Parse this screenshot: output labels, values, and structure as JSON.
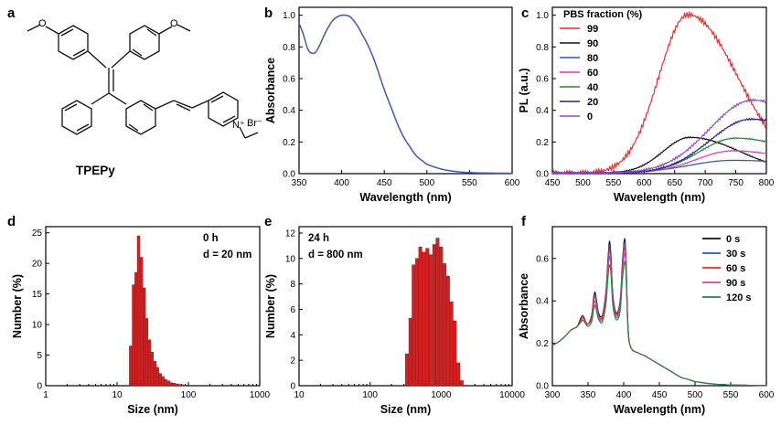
{
  "colors": {
    "b_line": "#3b59b5",
    "bars": "#d42020",
    "s99": "#ee2b2b",
    "s90": "#111111",
    "s80": "#2f55c9",
    "s60": "#d63fb0",
    "s40": "#1e8a3a",
    "s20": "#2a1f8f",
    "s0": "#8a4dd6"
  },
  "panel_a": {
    "letter": "a",
    "compound_name": "TPEPy",
    "labels": {
      "bromide": "Br⁻",
      "nitrogen": "N⁺"
    }
  },
  "chart_data": [
    {
      "panel": "b",
      "type": "line",
      "xlabel": "Wavelength (nm)",
      "ylabel": "Absorbance",
      "xlim": [
        350,
        600
      ],
      "ylim": [
        0,
        1.05
      ],
      "xticks": [
        350,
        400,
        450,
        500,
        550,
        600
      ],
      "yticks": [
        0.0,
        0.2,
        0.4,
        0.6,
        0.8,
        1.0
      ],
      "series": [
        {
          "x": [
            350,
            355,
            360,
            365,
            370,
            375,
            380,
            385,
            390,
            395,
            400,
            405,
            410,
            415,
            420,
            425,
            430,
            435,
            440,
            445,
            450,
            455,
            460,
            465,
            470,
            475,
            480,
            485,
            490,
            495,
            500,
            510,
            520,
            530,
            540,
            550,
            560,
            570,
            580,
            590,
            600
          ],
          "values": [
            0.95,
            0.88,
            0.79,
            0.76,
            0.77,
            0.82,
            0.88,
            0.93,
            0.97,
            0.99,
            1.0,
            1.0,
            0.99,
            0.96,
            0.92,
            0.87,
            0.82,
            0.76,
            0.69,
            0.61,
            0.53,
            0.46,
            0.39,
            0.32,
            0.26,
            0.21,
            0.17,
            0.13,
            0.1,
            0.08,
            0.06,
            0.04,
            0.025,
            0.016,
            0.01,
            0.007,
            0.005,
            0.004,
            0.003,
            0.003,
            0.002
          ]
        }
      ]
    },
    {
      "panel": "c",
      "type": "line",
      "xlabel": "Wavelength (nm)",
      "ylabel": "PL (a.u.)",
      "xlim": [
        450,
        800
      ],
      "ylim": [
        0,
        1.05
      ],
      "xticks": [
        450,
        500,
        550,
        600,
        650,
        700,
        750,
        800
      ],
      "yticks": [
        0.0,
        0.2,
        0.4,
        0.6,
        0.8,
        1.0
      ],
      "legend_title": "PBS fraction (%)",
      "legend_placement": "top-left",
      "series": [
        {
          "name": "99",
          "peak": 672,
          "amp": 1.0,
          "wl": 68,
          "wr": 115
        },
        {
          "name": "90",
          "peak": 675,
          "amp": 0.225,
          "wl": 62,
          "wr": 115
        },
        {
          "name": "80",
          "peak": 745,
          "amp": 0.08,
          "wl": 100,
          "wr": 200
        },
        {
          "name": "60",
          "peak": 745,
          "amp": 0.14,
          "wl": 85,
          "wr": 150
        },
        {
          "name": "40",
          "peak": 750,
          "amp": 0.22,
          "wl": 85,
          "wr": 150
        },
        {
          "name": "20",
          "peak": 775,
          "amp": 0.34,
          "wl": 95,
          "wr": 150
        },
        {
          "name": "0",
          "peak": 778,
          "amp": 0.46,
          "wl": 100,
          "wr": 150
        }
      ]
    },
    {
      "panel": "d",
      "type": "bar",
      "xlabel": "Size (nm)",
      "ylabel": "Number (%)",
      "xscale": "log",
      "xlim": [
        1,
        1000
      ],
      "ylim": [
        0,
        26
      ],
      "xticks": [
        1,
        10,
        100,
        1000
      ],
      "yticks": [
        0,
        5,
        10,
        15,
        20,
        25
      ],
      "annotations": [
        "0 h",
        "d = 20 nm"
      ],
      "bins": [
        15.5,
        17,
        18.5,
        20,
        22,
        24,
        26,
        28.5,
        31,
        34,
        37,
        40.5,
        44,
        48,
        53,
        58,
        63,
        69,
        75,
        82,
        90
      ],
      "values": [
        6.5,
        16.5,
        18.5,
        24.5,
        21,
        16,
        11,
        7.5,
        5.5,
        4,
        3,
        2,
        1.5,
        1,
        0.8,
        0.5,
        0.4,
        0.3,
        0.2,
        0.15,
        0.1
      ]
    },
    {
      "panel": "e",
      "type": "bar",
      "xlabel": "Size (nm)",
      "ylabel": "Number (%)",
      "xscale": "log",
      "xlim": [
        10,
        10000
      ],
      "ylim": [
        0,
        12.5
      ],
      "xticks": [
        10,
        100,
        1000,
        10000
      ],
      "yticks": [
        0,
        2,
        4,
        6,
        8,
        10,
        12
      ],
      "annotations": [
        "24 h",
        "d = 800 nm"
      ],
      "bins": [
        330,
        370,
        410,
        460,
        510,
        570,
        640,
        710,
        800,
        890,
        1000,
        1120,
        1250,
        1400,
        1560,
        1750,
        1950
      ],
      "values": [
        2.5,
        5.3,
        9.5,
        10.0,
        10.9,
        10.5,
        10.8,
        10.3,
        11.1,
        11.6,
        10.9,
        9.6,
        8.6,
        6.6,
        5.1,
        1.8,
        0.4
      ]
    },
    {
      "panel": "f",
      "type": "line",
      "xlabel": "Wavelength (nm)",
      "ylabel": "Absorbance",
      "xlim": [
        300,
        600
      ],
      "ylim": [
        0,
        0.75
      ],
      "xticks": [
        300,
        350,
        400,
        450,
        500,
        550,
        600
      ],
      "yticks": [
        0.0,
        0.2,
        0.4,
        0.6
      ],
      "legend_placement": "top-right",
      "x": [
        300,
        310,
        320,
        325,
        330,
        335,
        340,
        343,
        347,
        350,
        355,
        358,
        360,
        362,
        365,
        370,
        375,
        378,
        380,
        382,
        385,
        390,
        395,
        398,
        401,
        403,
        406,
        410,
        420,
        430,
        440,
        450,
        460,
        470,
        480,
        490,
        500,
        520,
        540,
        560,
        580,
        600
      ],
      "series": [
        {
          "name": "0 s",
          "values": [
            0.19,
            0.21,
            0.24,
            0.26,
            0.27,
            0.28,
            0.32,
            0.33,
            0.3,
            0.29,
            0.33,
            0.42,
            0.44,
            0.4,
            0.34,
            0.33,
            0.44,
            0.6,
            0.68,
            0.62,
            0.42,
            0.34,
            0.4,
            0.57,
            0.69,
            0.62,
            0.28,
            0.18,
            0.155,
            0.14,
            0.12,
            0.1,
            0.08,
            0.06,
            0.04,
            0.03,
            0.02,
            0.01,
            0.005,
            0.003,
            0.002,
            0.001
          ]
        },
        {
          "name": "30 s",
          "values": [
            0.19,
            0.21,
            0.24,
            0.26,
            0.27,
            0.28,
            0.31,
            0.32,
            0.3,
            0.29,
            0.32,
            0.41,
            0.43,
            0.39,
            0.33,
            0.32,
            0.43,
            0.59,
            0.66,
            0.6,
            0.41,
            0.33,
            0.39,
            0.56,
            0.675,
            0.61,
            0.28,
            0.18,
            0.155,
            0.14,
            0.12,
            0.1,
            0.08,
            0.06,
            0.04,
            0.03,
            0.02,
            0.01,
            0.005,
            0.003,
            0.002,
            0.001
          ]
        },
        {
          "name": "60 s",
          "values": [
            0.19,
            0.21,
            0.24,
            0.26,
            0.27,
            0.28,
            0.31,
            0.32,
            0.3,
            0.29,
            0.32,
            0.4,
            0.42,
            0.38,
            0.33,
            0.32,
            0.42,
            0.57,
            0.64,
            0.58,
            0.4,
            0.33,
            0.38,
            0.54,
            0.65,
            0.59,
            0.28,
            0.18,
            0.155,
            0.14,
            0.12,
            0.1,
            0.08,
            0.06,
            0.04,
            0.03,
            0.02,
            0.01,
            0.005,
            0.003,
            0.002,
            0.001
          ]
        },
        {
          "name": "90 s",
          "values": [
            0.19,
            0.21,
            0.24,
            0.26,
            0.27,
            0.28,
            0.3,
            0.31,
            0.29,
            0.29,
            0.31,
            0.38,
            0.4,
            0.37,
            0.32,
            0.31,
            0.4,
            0.54,
            0.61,
            0.56,
            0.39,
            0.32,
            0.37,
            0.52,
            0.62,
            0.57,
            0.27,
            0.18,
            0.155,
            0.14,
            0.12,
            0.1,
            0.08,
            0.06,
            0.04,
            0.03,
            0.02,
            0.01,
            0.005,
            0.003,
            0.002,
            0.001
          ]
        },
        {
          "name": "120 s",
          "values": [
            0.19,
            0.21,
            0.24,
            0.26,
            0.27,
            0.28,
            0.3,
            0.31,
            0.29,
            0.28,
            0.3,
            0.36,
            0.38,
            0.35,
            0.31,
            0.3,
            0.38,
            0.51,
            0.57,
            0.53,
            0.37,
            0.31,
            0.35,
            0.49,
            0.58,
            0.54,
            0.26,
            0.18,
            0.155,
            0.14,
            0.12,
            0.1,
            0.08,
            0.06,
            0.04,
            0.03,
            0.02,
            0.01,
            0.005,
            0.003,
            0.002,
            0.001
          ]
        }
      ]
    }
  ]
}
